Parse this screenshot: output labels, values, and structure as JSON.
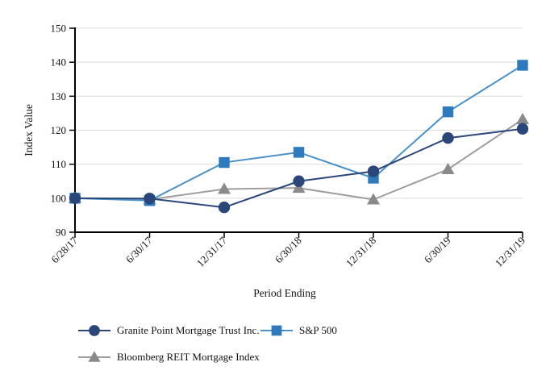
{
  "chart_data": {
    "type": "line",
    "title": "",
    "xlabel": "Period Ending",
    "ylabel": "Index Value",
    "x": [
      "6/28/17",
      "6/30/17",
      "12/31/17",
      "6/30/18",
      "12/31/18",
      "6/30/19",
      "12/31/19"
    ],
    "ylim": [
      90,
      150
    ],
    "ytick_step": 10,
    "grid": true,
    "legend_position": "bottom",
    "series": [
      {
        "name": "Granite Point Mortgage Trust Inc.",
        "marker": "circle",
        "marker_color": "#2B4779",
        "line_color": "#2B4779",
        "values": [
          100,
          99.9,
          97.3,
          105.0,
          107.9,
          117.7,
          120.4
        ]
      },
      {
        "name": "S&P 500",
        "marker": "square",
        "marker_color": "#2E7ABD",
        "line_color": "#4A90C8",
        "values": [
          100,
          99.3,
          110.5,
          113.5,
          105.9,
          125.4,
          139.1
        ]
      },
      {
        "name": "Bloomberg REIT Mortgage Index",
        "marker": "triangle",
        "marker_color": "#8A8A8A",
        "line_color": "#9E9E9E",
        "values": [
          100,
          99.6,
          102.7,
          103.0,
          99.6,
          108.5,
          123.2
        ]
      }
    ]
  },
  "colors": {
    "background": "#FFFFFF",
    "gridline": "#DCDCDC",
    "axis": "#000000",
    "text": "#111111"
  }
}
